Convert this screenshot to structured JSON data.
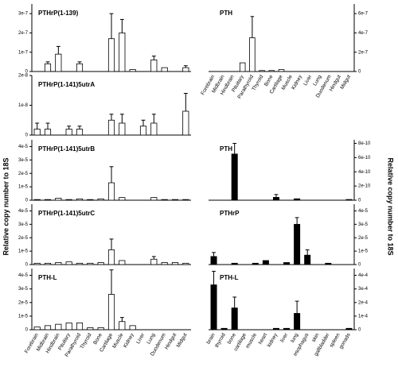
{
  "chart_data": [
    {
      "type": "bar",
      "title": "PTHrP(1-139)",
      "color": "#ffffff",
      "y_axis": "left",
      "values": [
        0,
        4e-08,
        9e-08,
        0,
        4e-08,
        0,
        0,
        1.7e-07,
        2e-07,
        1e-08,
        0,
        6e-08,
        2e-08,
        0,
        2e-08
      ],
      "errors": [
        null,
        1e-08,
        4e-08,
        null,
        1e-08,
        null,
        null,
        1.3e-07,
        7e-08,
        null,
        null,
        2e-08,
        null,
        null,
        1e-08
      ],
      "ylim": [
        0,
        3.5e-07
      ],
      "yticks": [
        0,
        {
          "value": 1e-07,
          "label": "1e-7"
        },
        {
          "value": 2e-07,
          "label": "2e-7"
        },
        {
          "value": 3e-07,
          "label": "3e-7"
        }
      ]
    },
    {
      "type": "bar",
      "title": "PTHrP(1-141)5utrA",
      "color": "#ffffff",
      "y_axis": "left",
      "values": [
        2e-09,
        2e-09,
        0,
        2e-09,
        2e-09,
        0,
        0,
        5e-09,
        4e-09,
        0,
        3e-09,
        4e-09,
        0,
        0,
        8e-09
      ],
      "errors": [
        2e-09,
        2e-09,
        null,
        1e-09,
        1e-09,
        null,
        null,
        2e-09,
        3e-09,
        null,
        2e-09,
        3e-09,
        null,
        null,
        6e-09
      ],
      "ylim": [
        0,
        2e-08
      ],
      "yticks": [
        0,
        {
          "value": 1e-08,
          "label": "1e-8"
        },
        {
          "value": 2e-08,
          "label": "2e-8"
        }
      ]
    },
    {
      "type": "bar",
      "title": "PTHrP(1-141)5utrB",
      "color": "#ffffff",
      "y_axis": "left",
      "y_label": "Relative copy number to 18S",
      "values": [
        5e-07,
        5e-07,
        1.5e-06,
        5e-07,
        1e-06,
        5e-07,
        1e-06,
        1.3e-05,
        2e-06,
        0,
        0,
        2e-06,
        5e-07,
        5e-07,
        5e-07
      ],
      "errors": [
        null,
        null,
        null,
        null,
        null,
        null,
        null,
        1.2e-05,
        null,
        null,
        null,
        null,
        null,
        null,
        null
      ],
      "ylim": [
        0,
        4.5e-05
      ],
      "yticks": [
        0,
        {
          "value": 1e-05,
          "label": "1e-5"
        },
        {
          "value": 2e-05,
          "label": "2e-5"
        },
        {
          "value": 3e-05,
          "label": "3e-5"
        },
        {
          "value": 4e-05,
          "label": "4e-5"
        }
      ]
    },
    {
      "type": "bar",
      "title": "PTHrP(1-141)5utrC",
      "color": "#ffffff",
      "y_axis": "left",
      "values": [
        1e-06,
        1e-06,
        1.5e-06,
        2e-06,
        1e-06,
        1e-06,
        1.5e-06,
        1.1e-05,
        3e-06,
        0,
        0,
        4e-06,
        1.5e-06,
        1.5e-06,
        1e-06
      ],
      "errors": [
        null,
        null,
        null,
        null,
        null,
        null,
        null,
        8e-06,
        null,
        null,
        null,
        2e-06,
        null,
        null,
        null
      ],
      "ylim": [
        0,
        4.5e-05
      ],
      "yticks": [
        0,
        {
          "value": 1e-05,
          "label": "1e-5"
        },
        {
          "value": 2e-05,
          "label": "2e-5"
        },
        {
          "value": 3e-05,
          "label": "3e-5"
        },
        {
          "value": 4e-05,
          "label": "4e-5"
        }
      ]
    },
    {
      "type": "bar",
      "title": "PTH-L",
      "color": "#ffffff",
      "y_axis": "left",
      "categories": [
        "Forebrain",
        "Midbrain",
        "Hindbrain",
        "Pituitary",
        "Parathyroid",
        "Thyroid",
        "Bone",
        "Cartilage",
        "Muscle",
        "Kidney",
        "Liver",
        "Lung",
        "Duodenum",
        "Hindgut",
        "Midgut"
      ],
      "values": [
        2e-06,
        3e-06,
        4e-06,
        5e-06,
        5e-06,
        1.5e-06,
        1.5e-06,
        2.6e-05,
        6e-06,
        3e-06,
        0,
        0,
        0,
        0,
        0
      ],
      "errors": [
        null,
        null,
        null,
        null,
        null,
        null,
        null,
        1.8e-05,
        3e-06,
        null,
        null,
        null,
        null,
        null,
        null
      ],
      "ylim": [
        0,
        4.5e-05
      ],
      "yticks": [
        0,
        {
          "value": 1e-05,
          "label": "1e-5"
        },
        {
          "value": 2e-05,
          "label": "2e-5"
        },
        {
          "value": 3e-05,
          "label": "3e-5"
        },
        {
          "value": 4e-05,
          "label": "4e-5"
        }
      ]
    },
    {
      "type": "bar",
      "title": "PTH",
      "color": "#ffffff",
      "y_axis": "right",
      "categories": [
        "Forebrain",
        "Midbrain",
        "Hindbrain",
        "Pituitary",
        "Parathyroid",
        "Thyroid",
        "Bone",
        "Cartilage",
        "Muscle",
        "Kidney",
        "Liver",
        "Lung",
        "Duodenum",
        "Hindgut",
        "Midgut"
      ],
      "values": [
        0,
        0,
        0,
        9e-08,
        3.5e-07,
        1e-08,
        1e-08,
        2e-08,
        0,
        0,
        0,
        0,
        0,
        0,
        0
      ],
      "errors": [
        null,
        null,
        null,
        null,
        2.2e-07,
        null,
        null,
        null,
        null,
        null,
        null,
        null,
        null,
        null,
        null
      ],
      "ylim": [
        0,
        7e-07
      ],
      "yticks": [
        0,
        {
          "value": 2e-07,
          "label": "2e-7"
        },
        {
          "value": 4e-07,
          "label": "4e-7"
        },
        {
          "value": 6e-07,
          "label": "6e-7"
        }
      ]
    },
    {
      "type": "bar",
      "title": "PTH",
      "color": "#000000",
      "y_axis": "right",
      "y_label": "Relative copy number to 18S",
      "values": [
        0,
        0,
        6.5e-10,
        0,
        0,
        0,
        4e-11,
        0,
        2e-11,
        0,
        0,
        0,
        0,
        1e-11
      ],
      "errors": [
        null,
        null,
        1.5e-10,
        null,
        null,
        null,
        4e-11,
        null,
        null,
        null,
        null,
        null,
        null,
        null
      ],
      "ylim": [
        0,
        8.5e-10
      ],
      "yticks": [
        0,
        {
          "value": 2e-10,
          "label": "2e-10"
        },
        {
          "value": 4e-10,
          "label": "4e-10"
        },
        {
          "value": 6e-10,
          "label": "6e-10"
        },
        {
          "value": 8e-10,
          "label": "8e-10"
        }
      ]
    },
    {
      "type": "bar",
      "title": "PTHrP",
      "color": "#000000",
      "y_axis": "right",
      "values": [
        6e-06,
        0,
        1e-06,
        0,
        1e-06,
        3e-06,
        0,
        1.5e-06,
        3e-05,
        7e-06,
        0,
        1e-06,
        0,
        0
      ],
      "errors": [
        3e-06,
        null,
        null,
        null,
        null,
        null,
        null,
        null,
        5e-06,
        4e-06,
        null,
        null,
        null,
        null
      ],
      "ylim": [
        0,
        4.5e-05
      ],
      "yticks": [
        0,
        {
          "value": 1e-05,
          "label": "1e-5"
        },
        {
          "value": 2e-05,
          "label": "2e-5"
        },
        {
          "value": 3e-05,
          "label": "3e-5"
        },
        {
          "value": 4e-05,
          "label": "4e-5"
        }
      ]
    },
    {
      "type": "bar",
      "title": "PTH-L",
      "color": "#000000",
      "y_axis": "right",
      "categories": [
        "brain",
        "thyroid",
        "bone",
        "cartilage",
        "muscle",
        "heart",
        "kidney",
        "liver",
        "lung",
        "esophagus",
        "skin",
        "gallbladder",
        "spleen",
        "gonads"
      ],
      "values": [
        0.00033,
        1e-05,
        0.00016,
        0,
        0,
        0,
        1e-05,
        1e-05,
        0.00012,
        0,
        0,
        0,
        0,
        1e-05
      ],
      "errors": [
        0.0001,
        null,
        8e-05,
        null,
        null,
        null,
        null,
        null,
        9e-05,
        null,
        null,
        null,
        null,
        null
      ],
      "ylim": [
        0,
        0.00045
      ],
      "yticks": [
        0,
        {
          "value": 0.0001,
          "label": "1e-4"
        },
        {
          "value": 0.0002,
          "label": "2e-4"
        },
        {
          "value": 0.0003,
          "label": "3e-4"
        },
        {
          "value": 0.0004,
          "label": "4e-4"
        }
      ]
    }
  ]
}
